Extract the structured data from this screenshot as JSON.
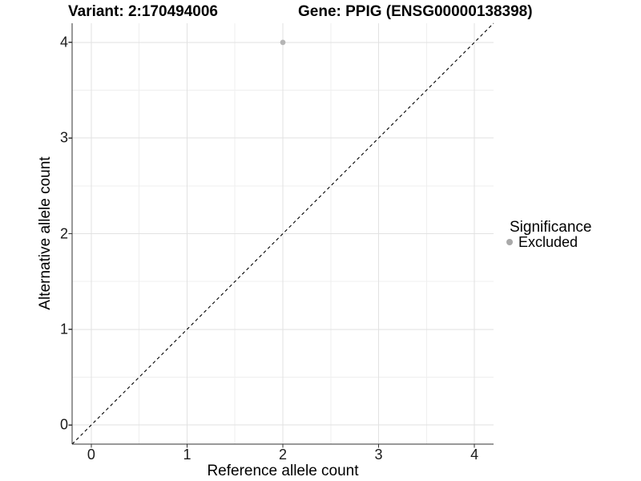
{
  "chart_data": {
    "type": "scatter",
    "title_left": "Variant: 2:170494006",
    "title_right": "Gene: PPIG (ENSG00000138398)",
    "xlabel": "Reference allele count",
    "ylabel": "Alternative allele count",
    "xlim": [
      -0.2,
      4.2
    ],
    "ylim": [
      -0.2,
      4.2
    ],
    "x_ticks": [
      0,
      1,
      2,
      3,
      4
    ],
    "y_ticks": [
      0,
      1,
      2,
      3,
      4
    ],
    "x_minor_ticks": [
      0.5,
      1.5,
      2.5,
      3.5
    ],
    "y_minor_ticks": [
      0.5,
      1.5,
      2.5,
      3.5
    ],
    "grid": "major+minor",
    "identity_line": {
      "style": "dashed",
      "slope": 1,
      "intercept": 0,
      "color": "#000000"
    },
    "series": [
      {
        "name": "Excluded",
        "color": "#b5b5b5",
        "points": [
          {
            "x": 2,
            "y": 4
          }
        ]
      }
    ],
    "legend": {
      "position": "right",
      "title": "Significance",
      "items": [
        {
          "label": "Excluded",
          "color": "#a9a9a9"
        }
      ]
    }
  },
  "colors": {
    "background": "#ffffff",
    "grid_major": "#e2e2e2",
    "grid_minor": "#efefef",
    "axis_line": "#333333",
    "tick_text": "#1a1a1a",
    "title_text": "#000000"
  }
}
